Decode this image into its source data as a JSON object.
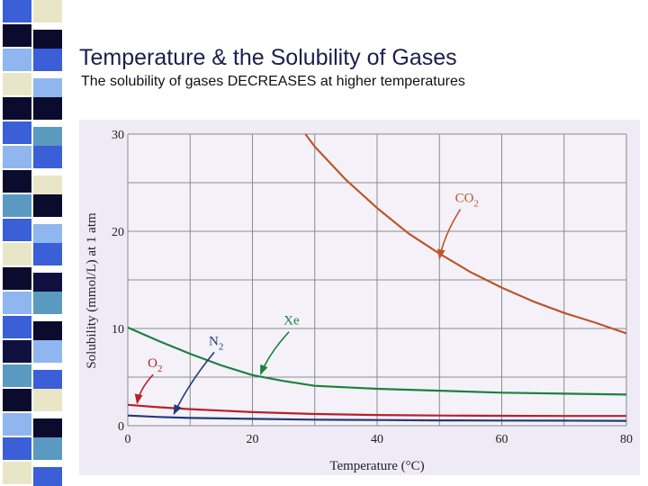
{
  "slide": {
    "title": "Temperature & the Solubility of Gases",
    "subtitle": "The solubility of gases DECREASES at higher temperatures"
  },
  "decoration": {
    "stripe_colors": [
      "#3a5fd6",
      "#0b0b2e",
      "#8fb6ee",
      "#e9e6c8",
      "#5a9ac0",
      "#101040"
    ]
  },
  "chart_data": {
    "type": "line",
    "xlabel": "Temperature (°C)",
    "ylabel": "Solubility (mmol/L) at 1 atm",
    "xlim": [
      0,
      80
    ],
    "ylim": [
      0,
      30
    ],
    "x_ticks": [
      0,
      20,
      40,
      60,
      80
    ],
    "y_ticks": [
      0,
      10,
      20,
      30
    ],
    "grid": true,
    "background": "#eeeaf6",
    "plot_background": "#f4f2f8",
    "series": [
      {
        "name": "CO2",
        "label_main": "CO",
        "label_sub": "2",
        "color": "#c0542c",
        "x": [
          28.5,
          30,
          35,
          40,
          45,
          50,
          55,
          60,
          65,
          70,
          75,
          80
        ],
        "y": [
          30,
          28.7,
          25.3,
          22.4,
          19.8,
          17.7,
          15.8,
          14.2,
          12.8,
          11.6,
          10.6,
          9.5
        ],
        "label_pos": [
          52.5,
          23
        ],
        "arrow_to": [
          50,
          17.2
        ]
      },
      {
        "name": "Xe",
        "label_main": "Xe",
        "label_sub": "",
        "color": "#1e8040",
        "x": [
          0,
          5,
          10,
          15,
          20,
          25,
          30,
          40,
          50,
          60,
          70,
          80
        ],
        "y": [
          10.1,
          8.7,
          7.4,
          6.2,
          5.2,
          4.6,
          4.1,
          3.8,
          3.6,
          3.4,
          3.3,
          3.2
        ],
        "label_pos": [
          25,
          10.4
        ],
        "arrow_to": [
          21.3,
          5.3
        ]
      },
      {
        "name": "O2",
        "label_main": "O",
        "label_sub": "2",
        "color": "#b8202c",
        "x": [
          0,
          5,
          10,
          20,
          30,
          40,
          50,
          60,
          70,
          80
        ],
        "y": [
          2.15,
          1.9,
          1.7,
          1.4,
          1.2,
          1.1,
          1.05,
          1.02,
          1.0,
          1.0
        ],
        "label_pos": [
          3.2,
          6.0
        ],
        "arrow_to": [
          1.5,
          2.3
        ]
      },
      {
        "name": "N2",
        "label_main": "N",
        "label_sub": "2",
        "color": "#233a78",
        "x": [
          0,
          5,
          10,
          20,
          30,
          40,
          50,
          60,
          70,
          80
        ],
        "y": [
          1.05,
          0.9,
          0.8,
          0.7,
          0.62,
          0.58,
          0.55,
          0.53,
          0.52,
          0.5
        ],
        "label_pos": [
          13,
          8.3
        ],
        "arrow_to": [
          7.4,
          1.2
        ]
      }
    ]
  }
}
